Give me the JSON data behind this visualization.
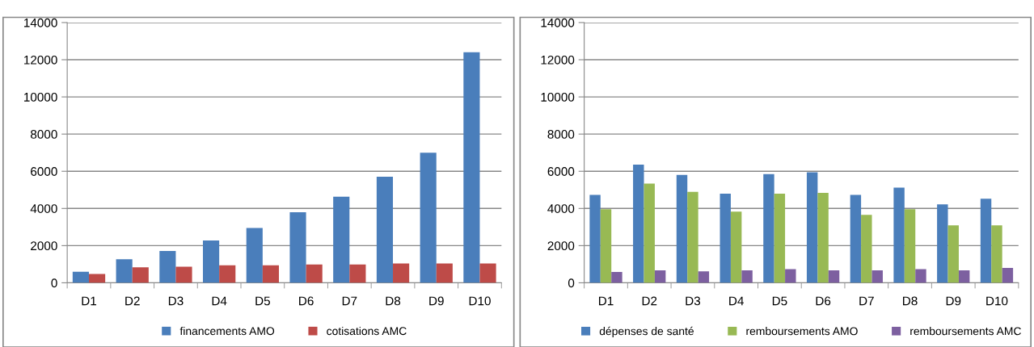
{
  "chart_data": [
    {
      "type": "bar",
      "categories": [
        "D1",
        "D2",
        "D3",
        "D4",
        "D5",
        "D6",
        "D7",
        "D8",
        "D9",
        "D10"
      ],
      "series": [
        {
          "name": "financements AMO",
          "color": "#4a7ebb",
          "values": [
            600,
            1270,
            1710,
            2280,
            2950,
            3800,
            4630,
            5710,
            7000,
            12400
          ]
        },
        {
          "name": "cotisations AMC",
          "color": "#be4b48",
          "values": [
            480,
            830,
            870,
            940,
            940,
            990,
            990,
            1040,
            1040,
            1040
          ]
        }
      ],
      "ylim": [
        0,
        14000
      ],
      "yticks": [
        0,
        2000,
        4000,
        6000,
        8000,
        10000,
        12000,
        14000
      ],
      "grid": "y",
      "legend": "bottom"
    },
    {
      "type": "bar",
      "categories": [
        "D1",
        "D2",
        "D3",
        "D4",
        "D5",
        "D6",
        "D7",
        "D8",
        "D9",
        "D10"
      ],
      "series": [
        {
          "name": "dépenses de santé",
          "color": "#4a7ebb",
          "values": [
            4730,
            6360,
            5800,
            4790,
            5850,
            5940,
            4730,
            5120,
            4220,
            4520
          ]
        },
        {
          "name": "remboursements AMO",
          "color": "#98b954",
          "values": [
            3960,
            5340,
            4890,
            3830,
            4790,
            4840,
            3660,
            3960,
            3090,
            3090
          ]
        },
        {
          "name": "remboursements AMC",
          "color": "#7d60a0",
          "values": [
            580,
            670,
            620,
            670,
            740,
            670,
            670,
            740,
            670,
            800
          ]
        }
      ],
      "ylim": [
        0,
        14000
      ],
      "yticks": [
        0,
        2000,
        4000,
        6000,
        8000,
        10000,
        12000,
        14000
      ],
      "grid": "y",
      "legend": "bottom"
    }
  ]
}
